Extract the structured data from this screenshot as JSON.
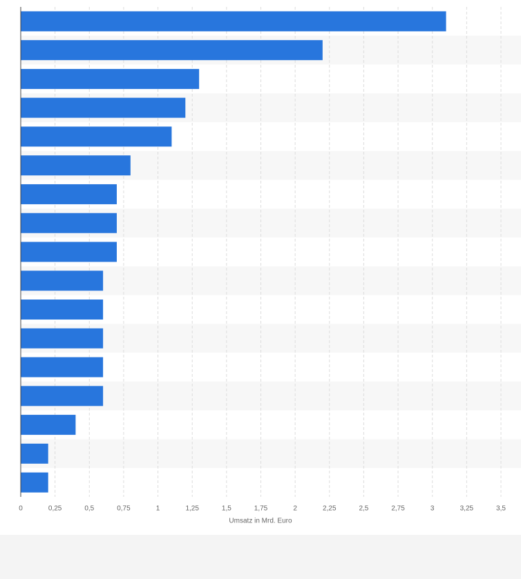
{
  "chart_data": {
    "type": "bar",
    "orientation": "horizontal",
    "x_label": "Umsatz in Mrd. Euro",
    "values": [
      3.1,
      2.2,
      1.3,
      1.2,
      1.1,
      0.8,
      0.7,
      0.7,
      0.7,
      0.6,
      0.6,
      0.6,
      0.6,
      0.6,
      0.4,
      0.2,
      0.2
    ],
    "color": "#2876dd",
    "xlim": [
      0,
      3.5
    ],
    "xticks": [
      0,
      {
        "value": 0.25,
        "label": "0,25"
      },
      {
        "value": 0.5,
        "label": "0,5"
      },
      {
        "value": 0.75,
        "label": "0,75"
      },
      1,
      {
        "value": 1.25,
        "label": "1,25"
      },
      {
        "value": 1.5,
        "label": "1,5"
      },
      {
        "value": 1.75,
        "label": "1,75"
      },
      2,
      {
        "value": 2.25,
        "label": "2,25"
      },
      {
        "value": 2.5,
        "label": "2,5"
      },
      {
        "value": 2.75,
        "label": "2,75"
      },
      3,
      {
        "value": 3.25,
        "label": "3,25"
      },
      {
        "value": 3.5,
        "label": "3,5"
      }
    ],
    "grid": true
  }
}
